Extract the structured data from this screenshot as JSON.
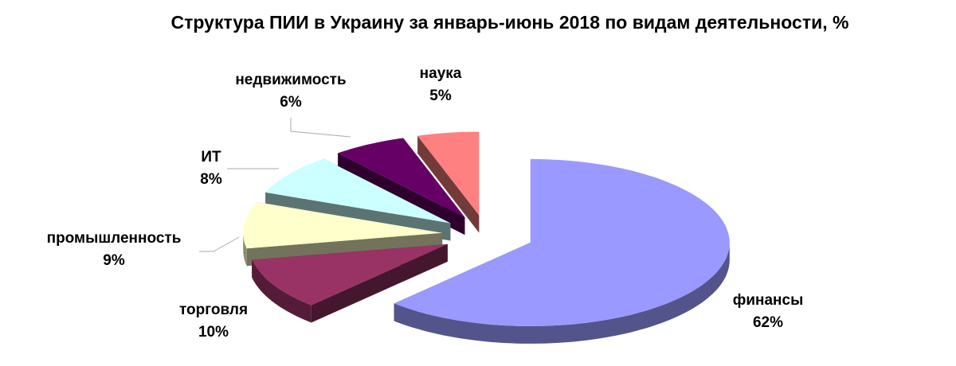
{
  "chart_data": {
    "type": "pie",
    "title": "Структура ПИИ в Украину за январь-июнь 2018 по видам деятельности, %",
    "categories": [
      "финансы",
      "торговля",
      "промышленность",
      "ИТ",
      "недвижимость",
      "наука"
    ],
    "values": [
      62,
      10,
      9,
      8,
      6,
      5
    ],
    "value_labels": [
      "62%",
      "10%",
      "9%",
      "8%",
      "6%",
      "5%"
    ],
    "colors": [
      "#9999ff",
      "#993366",
      "#ffffcc",
      "#ccffff",
      "#660066",
      "#ff8080"
    ]
  }
}
